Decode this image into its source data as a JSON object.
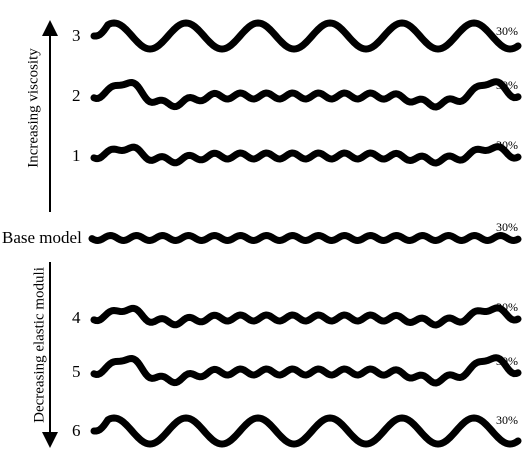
{
  "side_labels": {
    "upper": "Increasing viscosity",
    "lower": "Decreasing elastic moduli"
  },
  "rows": [
    {
      "label": "3",
      "annotation": "30%"
    },
    {
      "label": "2",
      "annotation": "30%"
    },
    {
      "label": "1",
      "annotation": "30%"
    },
    {
      "label": "Base model",
      "annotation": "30%"
    },
    {
      "label": "4",
      "annotation": "30%"
    },
    {
      "label": "5",
      "annotation": "30%"
    },
    {
      "label": "6",
      "annotation": "30%"
    }
  ]
}
